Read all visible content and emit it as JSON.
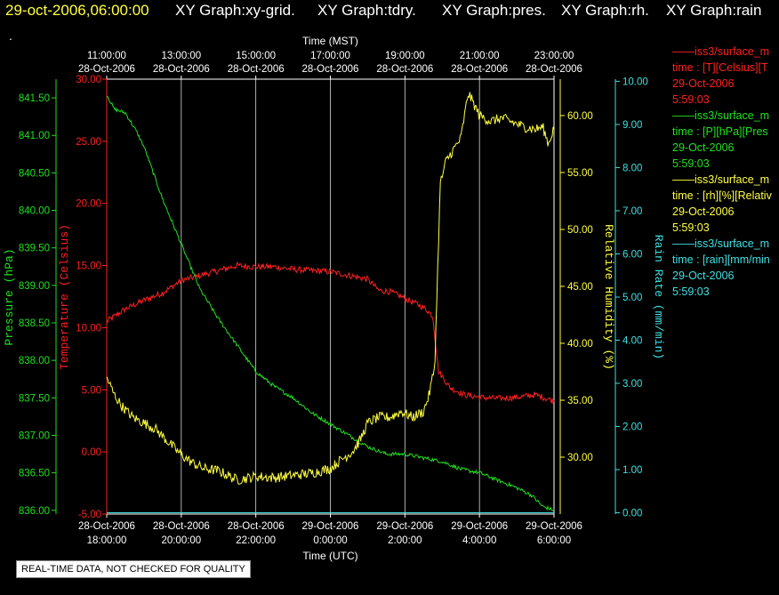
{
  "header": {
    "timestamp": "29-oct-2006,06:00:00",
    "graphs": [
      "XY Graph:xy-grid.",
      "XY Graph:tdry.",
      "XY Graph:pres.",
      "XY Graph:rh.",
      "XY Graph:rain"
    ]
  },
  "dot": ".",
  "footer_notice": "REAL-TIME DATA, NOT CHECKED FOR QUALITY",
  "legend": [
    {
      "line1": "iss3/surface_m",
      "line2": "time : [T][Celsius][T",
      "line3": "29-Oct-2006",
      "line4": "5:59:03",
      "color": "#ff2020"
    },
    {
      "line1": "iss3/surface_m",
      "line2": "time : [P][hPa][Pres",
      "line3": "29-Oct-2006",
      "line4": "5:59:03",
      "color": "#20e020"
    },
    {
      "line1": "iss3/surface_m",
      "line2": "time : [rh][%][Relativ",
      "line3": "29-Oct-2006",
      "line4": "5:59:03",
      "color": "#ffff40"
    },
    {
      "line1": "iss3/surface_m",
      "line2": "time : [rain][mm/min",
      "line3": "29-Oct-2006",
      "line4": "5:59:03",
      "color": "#40e0e0"
    }
  ],
  "chart_data": {
    "type": "line",
    "top_axis_title": "Time (MST)",
    "bottom_axis_title": "Time (UTC)",
    "top_ticks": [
      {
        "time": "11:00:00",
        "date": "28-Oct-2006"
      },
      {
        "time": "13:00:00",
        "date": "28-Oct-2006"
      },
      {
        "time": "15:00:00",
        "date": "28-Oct-2006"
      },
      {
        "time": "17:00:00",
        "date": "28-Oct-2006"
      },
      {
        "time": "19:00:00",
        "date": "28-Oct-2006"
      },
      {
        "time": "21:00:00",
        "date": "28-Oct-2006"
      },
      {
        "time": "23:00:00",
        "date": "28-Oct-2006"
      }
    ],
    "bottom_ticks": [
      {
        "date": "28-Oct-2006",
        "time": "18:00:00"
      },
      {
        "date": "28-Oct-2006",
        "time": "20:00:00"
      },
      {
        "date": "28-Oct-2006",
        "time": "22:00:00"
      },
      {
        "date": "29-Oct-2006",
        "time": "0:00:00"
      },
      {
        "date": "29-Oct-2006",
        "time": "2:00:00"
      },
      {
        "date": "29-Oct-2006",
        "time": "4:00:00"
      },
      {
        "date": "29-Oct-2006",
        "time": "6:00:00"
      }
    ],
    "x_range_hours_utc": [
      18,
      30
    ],
    "grid": true,
    "axes": {
      "pressure": {
        "label": "Pressure (hPa)",
        "color": "#20e020",
        "ylim": [
          835.95,
          841.75
        ],
        "ticks": [
          "841.50",
          "841.00",
          "840.50",
          "840.00",
          "839.50",
          "839.00",
          "838.50",
          "838.00",
          "837.50",
          "837.00",
          "836.50",
          "836.00"
        ]
      },
      "temperature": {
        "label": "Temperature (Celsius)",
        "color": "#ff2020",
        "ylim": [
          -5,
          30
        ],
        "ticks": [
          "30.00",
          "25.00",
          "20.00",
          "15.00",
          "10.00",
          "5.00",
          "0.00",
          "-5.00"
        ]
      },
      "humidity": {
        "label": "Relative Humidity (%)",
        "color": "#ffff40",
        "ylim": [
          25.0,
          63.2
        ],
        "ticks": [
          "60.00",
          "55.00",
          "50.00",
          "45.00",
          "40.00",
          "35.00",
          "30.00"
        ]
      },
      "rain": {
        "label": "Rain Rate (mm/min)",
        "color": "#40e0e0",
        "ylim": [
          -0.03,
          10.05
        ],
        "ticks": [
          "10.00",
          "9.00",
          "8.00",
          "7.00",
          "6.00",
          "5.00",
          "4.00",
          "3.00",
          "2.00",
          "1.00",
          "0.00"
        ]
      }
    },
    "series": [
      {
        "name": "temperature",
        "axis": "temperature",
        "color": "#ff2020",
        "x": [
          18.0,
          18.5,
          19.0,
          19.5,
          20.0,
          20.5,
          21.0,
          21.5,
          22.0,
          22.5,
          23.0,
          23.5,
          24.0,
          24.5,
          25.0,
          25.3,
          25.6,
          25.9,
          26.1,
          26.4,
          26.6,
          26.75,
          26.9,
          27.2,
          27.6,
          28.0,
          28.5,
          29.0,
          29.5,
          30.0
        ],
        "y": [
          10.5,
          11.5,
          12.2,
          12.8,
          13.8,
          14.2,
          14.6,
          15.0,
          14.9,
          14.9,
          14.7,
          14.6,
          14.5,
          14.2,
          13.9,
          13.0,
          12.9,
          12.5,
          12.2,
          11.8,
          11.4,
          10.9,
          6.5,
          5.2,
          4.6,
          4.4,
          4.3,
          4.4,
          4.6,
          4.1
        ],
        "noise": 0.25
      },
      {
        "name": "pressure",
        "axis": "pressure",
        "color": "#20e020",
        "x": [
          18.0,
          18.2,
          18.5,
          18.8,
          19.0,
          19.5,
          20.0,
          20.5,
          21.0,
          21.5,
          22.0,
          22.5,
          23.0,
          23.5,
          24.0,
          24.5,
          25.0,
          25.5,
          26.0,
          26.5,
          27.0,
          27.5,
          28.0,
          28.5,
          29.0,
          29.4,
          29.7,
          30.0
        ],
        "y": [
          841.55,
          841.35,
          841.3,
          841.05,
          840.85,
          840.15,
          839.55,
          838.95,
          838.55,
          838.2,
          837.85,
          837.65,
          837.5,
          837.3,
          837.15,
          837.0,
          836.85,
          836.75,
          836.75,
          836.7,
          836.65,
          836.55,
          836.5,
          836.4,
          836.3,
          836.2,
          836.05,
          836.0
        ],
        "noise": 0.025
      },
      {
        "name": "humidity",
        "axis": "humidity",
        "color": "#ffff40",
        "x": [
          18.0,
          18.2,
          18.4,
          18.7,
          19.0,
          19.3,
          19.6,
          20.0,
          20.3,
          20.6,
          21.0,
          21.5,
          22.0,
          22.5,
          23.0,
          23.5,
          24.0,
          24.3,
          24.6,
          24.8,
          25.0,
          25.3,
          25.6,
          25.9,
          26.2,
          26.5,
          26.65,
          26.8,
          26.95,
          27.1,
          27.3,
          27.5,
          27.7,
          28.0,
          28.3,
          28.6,
          28.9,
          29.2,
          29.5,
          29.7,
          29.85,
          30.0
        ],
        "y": [
          37.0,
          35.5,
          34.5,
          33.5,
          33.0,
          32.5,
          31.5,
          30.2,
          29.5,
          29.0,
          28.8,
          28.0,
          28.3,
          28.2,
          28.4,
          28.6,
          29.0,
          29.8,
          30.5,
          31.5,
          33.0,
          33.5,
          33.5,
          34.0,
          33.5,
          34.0,
          35.5,
          38.0,
          54.0,
          56.0,
          57.0,
          58.0,
          62.0,
          60.0,
          59.5,
          59.8,
          59.4,
          59.0,
          58.8,
          59.0,
          57.5,
          59.0
        ],
        "noise": 0.45
      },
      {
        "name": "rain",
        "axis": "rain",
        "color": "#40e0e0",
        "x": [
          18.0,
          30.0
        ],
        "y": [
          0.0,
          0.0
        ],
        "noise": 0
      }
    ]
  }
}
